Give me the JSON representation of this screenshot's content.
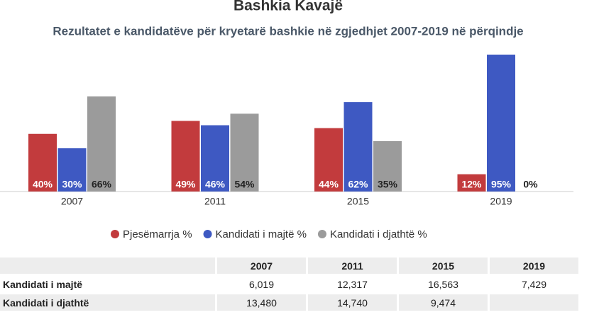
{
  "chart_data": {
    "type": "bar",
    "title": "Bashkia Kavajë",
    "subtitle": "Rezultatet e kandidatëve për kryetarë bashkie në zgjedhjet 2007-2019 në përqindje",
    "categories": [
      "2007",
      "2011",
      "2015",
      "2019"
    ],
    "series": [
      {
        "name": "Pjesëmarrja %",
        "color": "#c23b3d",
        "values": [
          40,
          49,
          44,
          12
        ],
        "value_labels": [
          "40%",
          "49%",
          "44%",
          "12%"
        ]
      },
      {
        "name": "Kandidati i majtë %",
        "color": "#3e59c2",
        "values": [
          30,
          46,
          62,
          95
        ],
        "value_labels": [
          "30%",
          "46%",
          "62%",
          "95%"
        ]
      },
      {
        "name": "Kandidati i djathtë %",
        "color": "#9b9b9b",
        "values": [
          66,
          54,
          35,
          0
        ],
        "value_labels": [
          "66%",
          "54%",
          "35%",
          "0%"
        ]
      }
    ]
  },
  "table": {
    "columns": [
      "2007",
      "2011",
      "2015",
      "2019"
    ],
    "rows": [
      [
        "Kandidati i majtë",
        "6,019",
        "12,317",
        "16,563",
        "7,429"
      ],
      [
        "Kandidati i djathtë",
        "13,480",
        "14,740",
        "9,474",
        null
      ]
    ]
  }
}
